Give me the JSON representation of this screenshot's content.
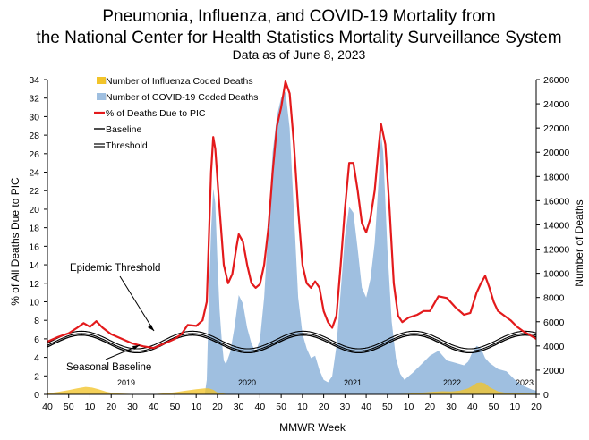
{
  "chart_data": {
    "type": "line",
    "title": "Pneumonia, Influenza, and COVID-19 Mortality from",
    "title_line2": "the National Center for Health Statistics Mortality Surveillance System",
    "subtitle": "Data as of June 8, 2023",
    "xlabel": "MMWR Week",
    "ylabel_left": "% of All Deaths Due to PIC",
    "ylabel_right": "Number of Deaths",
    "ylim_left": [
      0,
      34
    ],
    "ylim_right": [
      0,
      26000
    ],
    "y_ticks_left": [
      "0",
      "2",
      "4",
      "6",
      "8",
      "10",
      "12",
      "14",
      "16",
      "18",
      "20",
      "22",
      "24",
      "26",
      "28",
      "30",
      "32",
      "34"
    ],
    "y_ticks_right": [
      "0",
      "2000",
      "4000",
      "6000",
      "8000",
      "10000",
      "12000",
      "14000",
      "16000",
      "18000",
      "20000",
      "22000",
      "24000",
      "26000"
    ],
    "x_ticks": [
      "40",
      "50",
      "10",
      "20",
      "30",
      "40",
      "50",
      "10",
      "20",
      "30",
      "40",
      "50",
      "10",
      "20",
      "30",
      "40",
      "50",
      "10",
      "20",
      "30",
      "40",
      "50",
      "10",
      "20"
    ],
    "season_labels": [
      "2019",
      "2020",
      "2021",
      "2022",
      "2023"
    ],
    "grid": false,
    "legend_position": "top-left",
    "legend": {
      "influenza": "Number of Influenza Coded Deaths",
      "covid": "Number of COVID-19 Coded Deaths",
      "pic": "% of Deaths Due to PIC",
      "baseline": "Baseline",
      "threshold": "Threshold"
    },
    "annotations": {
      "threshold": "Epidemic Threshold",
      "baseline": "Seasonal Baseline"
    },
    "colors": {
      "influenza": "#f2c42a",
      "covid": "#9fbfe0",
      "pic": "#e31a1c",
      "baseline": "#000000",
      "threshold": "#000000"
    },
    "x_unit": "week index (0 = 2018 week 40)",
    "series": [
      {
        "name": "% of Deaths Due to PIC",
        "axis": "left",
        "points": [
          [
            0,
            5.7
          ],
          [
            5,
            6.2
          ],
          [
            10,
            6.6
          ],
          [
            14,
            7.2
          ],
          [
            17,
            7.7
          ],
          [
            20,
            7.3
          ],
          [
            23,
            7.9
          ],
          [
            26,
            7.2
          ],
          [
            30,
            6.5
          ],
          [
            35,
            6.0
          ],
          [
            40,
            5.5
          ],
          [
            45,
            5.2
          ],
          [
            50,
            5.0
          ],
          [
            55,
            5.5
          ],
          [
            60,
            6.0
          ],
          [
            63,
            6.5
          ],
          [
            66,
            7.5
          ],
          [
            70,
            7.4
          ],
          [
            73,
            8.0
          ],
          [
            75,
            10.0
          ],
          [
            76,
            17.0
          ],
          [
            77,
            24.0
          ],
          [
            78,
            27.8
          ],
          [
            79,
            26.5
          ],
          [
            81,
            20.0
          ],
          [
            83,
            14.0
          ],
          [
            85,
            12.0
          ],
          [
            87,
            13.0
          ],
          [
            89,
            16.0
          ],
          [
            90,
            17.3
          ],
          [
            92,
            16.5
          ],
          [
            94,
            14.0
          ],
          [
            96,
            12.0
          ],
          [
            98,
            11.5
          ],
          [
            100,
            11.9
          ],
          [
            102,
            14.0
          ],
          [
            104,
            18.0
          ],
          [
            106,
            24.0
          ],
          [
            108,
            29.0
          ],
          [
            110,
            31.0
          ],
          [
            112,
            33.8
          ],
          [
            114,
            32.5
          ],
          [
            116,
            27.0
          ],
          [
            118,
            20.0
          ],
          [
            120,
            14.0
          ],
          [
            122,
            12.0
          ],
          [
            124,
            11.5
          ],
          [
            126,
            12.2
          ],
          [
            128,
            11.5
          ],
          [
            130,
            9.0
          ],
          [
            132,
            7.8
          ],
          [
            134,
            7.2
          ],
          [
            136,
            8.5
          ],
          [
            138,
            14.0
          ],
          [
            140,
            20.0
          ],
          [
            142,
            25.0
          ],
          [
            144,
            25.0
          ],
          [
            146,
            22.0
          ],
          [
            148,
            18.5
          ],
          [
            150,
            17.5
          ],
          [
            152,
            19.0
          ],
          [
            154,
            22.0
          ],
          [
            156,
            27.0
          ],
          [
            157,
            29.2
          ],
          [
            159,
            27.0
          ],
          [
            161,
            20.0
          ],
          [
            163,
            12.0
          ],
          [
            165,
            8.5
          ],
          [
            167,
            7.8
          ],
          [
            170,
            8.3
          ],
          [
            174,
            8.6
          ],
          [
            177,
            9.0
          ],
          [
            180,
            9.0
          ],
          [
            184,
            10.6
          ],
          [
            188,
            10.4
          ],
          [
            192,
            9.4
          ],
          [
            196,
            8.6
          ],
          [
            199,
            8.8
          ],
          [
            202,
            11.0
          ],
          [
            204,
            12.0
          ],
          [
            206,
            12.8
          ],
          [
            208,
            11.5
          ],
          [
            210,
            10.0
          ],
          [
            212,
            9.0
          ],
          [
            215,
            8.5
          ],
          [
            218,
            8.0
          ],
          [
            221,
            7.3
          ],
          [
            224,
            6.8
          ],
          [
            227,
            6.4
          ],
          [
            230,
            6.0
          ]
        ]
      },
      {
        "name": "Number of COVID-19 Coded Deaths",
        "axis": "right",
        "points": [
          [
            74,
            0
          ],
          [
            75,
            1200
          ],
          [
            76,
            8000
          ],
          [
            77,
            13500
          ],
          [
            78,
            17000
          ],
          [
            79,
            15800
          ],
          [
            80,
            11000
          ],
          [
            81,
            7000
          ],
          [
            82,
            4500
          ],
          [
            83,
            2800
          ],
          [
            84,
            2500
          ],
          [
            86,
            3500
          ],
          [
            88,
            5500
          ],
          [
            90,
            8200
          ],
          [
            92,
            7500
          ],
          [
            94,
            5500
          ],
          [
            96,
            4200
          ],
          [
            98,
            3500
          ],
          [
            100,
            4500
          ],
          [
            102,
            8000
          ],
          [
            104,
            14000
          ],
          [
            106,
            20000
          ],
          [
            108,
            23000
          ],
          [
            110,
            24500
          ],
          [
            112,
            25000
          ],
          [
            114,
            22000
          ],
          [
            116,
            15000
          ],
          [
            118,
            8000
          ],
          [
            120,
            5000
          ],
          [
            122,
            3800
          ],
          [
            124,
            3000
          ],
          [
            126,
            3200
          ],
          [
            128,
            2000
          ],
          [
            130,
            1200
          ],
          [
            132,
            1000
          ],
          [
            134,
            1500
          ],
          [
            136,
            4000
          ],
          [
            138,
            8500
          ],
          [
            140,
            13000
          ],
          [
            142,
            15500
          ],
          [
            144,
            15000
          ],
          [
            146,
            12000
          ],
          [
            148,
            8800
          ],
          [
            150,
            8000
          ],
          [
            152,
            9500
          ],
          [
            154,
            12500
          ],
          [
            156,
            18000
          ],
          [
            157,
            21500
          ],
          [
            158,
            20000
          ],
          [
            160,
            12000
          ],
          [
            162,
            6000
          ],
          [
            164,
            3000
          ],
          [
            166,
            1700
          ],
          [
            168,
            1200
          ],
          [
            172,
            1800
          ],
          [
            176,
            2500
          ],
          [
            180,
            3200
          ],
          [
            184,
            3600
          ],
          [
            186,
            3200
          ],
          [
            188,
            2800
          ],
          [
            192,
            2600
          ],
          [
            196,
            2400
          ],
          [
            198,
            2700
          ],
          [
            200,
            3500
          ],
          [
            202,
            4000
          ],
          [
            204,
            3800
          ],
          [
            206,
            3000
          ],
          [
            208,
            2600
          ],
          [
            212,
            2100
          ],
          [
            216,
            1900
          ],
          [
            220,
            1200
          ],
          [
            224,
            700
          ],
          [
            228,
            400
          ],
          [
            230,
            300
          ]
        ]
      },
      {
        "name": "Number of Influenza Coded Deaths",
        "axis": "right",
        "points": [
          [
            0,
            80
          ],
          [
            5,
            200
          ],
          [
            10,
            350
          ],
          [
            14,
            500
          ],
          [
            18,
            620
          ],
          [
            21,
            560
          ],
          [
            24,
            420
          ],
          [
            28,
            200
          ],
          [
            32,
            80
          ],
          [
            40,
            30
          ],
          [
            50,
            20
          ],
          [
            55,
            80
          ],
          [
            60,
            180
          ],
          [
            65,
            300
          ],
          [
            70,
            420
          ],
          [
            74,
            500
          ],
          [
            76,
            500
          ],
          [
            78,
            380
          ],
          [
            80,
            150
          ],
          [
            84,
            40
          ],
          [
            100,
            10
          ],
          [
            120,
            10
          ],
          [
            140,
            10
          ],
          [
            160,
            15
          ],
          [
            170,
            60
          ],
          [
            176,
            140
          ],
          [
            182,
            220
          ],
          [
            186,
            260
          ],
          [
            190,
            240
          ],
          [
            194,
            300
          ],
          [
            198,
            500
          ],
          [
            200,
            700
          ],
          [
            202,
            950
          ],
          [
            204,
            1000
          ],
          [
            206,
            900
          ],
          [
            208,
            600
          ],
          [
            212,
            250
          ],
          [
            216,
            120
          ],
          [
            220,
            80
          ],
          [
            230,
            50
          ]
        ]
      }
    ],
    "baseline": {
      "mean": 5.45,
      "amplitude": 0.95,
      "phase_week": 16,
      "period": 52.18
    },
    "threshold_offset": 0.3
  }
}
